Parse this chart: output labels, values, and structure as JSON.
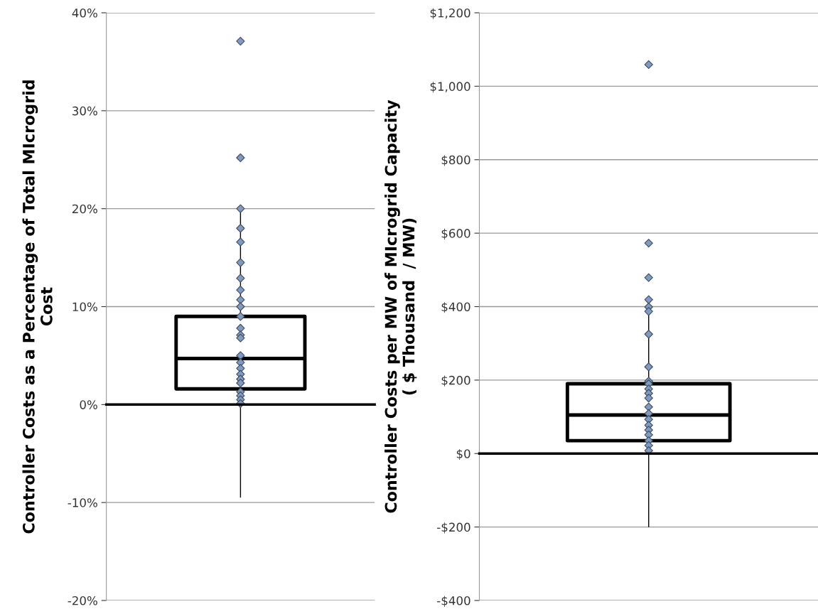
{
  "chart_data": [
    {
      "type": "box",
      "ylabel": "Controller Costs as a Percentage of Total MIcrogrid\nCost",
      "categories": [
        null
      ],
      "boxes": [
        {
          "low": -9.5,
          "q1": 1.6,
          "median": 4.7,
          "q3": 9.0,
          "high": 20.0
        }
      ],
      "series": [
        {
          "type": "scatter",
          "color": "#7f9bc2",
          "x": [
            null,
            null,
            null,
            null,
            null,
            null,
            null,
            null,
            null,
            null,
            null,
            null,
            null,
            null,
            null,
            null,
            null,
            null,
            null,
            null,
            null,
            null,
            null,
            null
          ],
          "values": [
            37.1,
            25.2,
            20.0,
            18.0,
            16.6,
            14.5,
            12.9,
            11.7,
            10.7,
            10.0,
            9.0,
            7.8,
            7.1,
            6.8,
            5.0,
            4.3,
            3.7,
            3.1,
            2.6,
            2.2,
            1.3,
            0.9,
            0.5,
            0.1
          ]
        }
      ],
      "marker": "diamond",
      "ylim": [
        -20,
        40
      ],
      "yticks": [
        {
          "value": -20,
          "label": "-20%"
        },
        {
          "value": -10,
          "label": "-10%"
        },
        {
          "value": 0,
          "label": "0%"
        },
        {
          "value": 10,
          "label": "10%"
        },
        {
          "value": 20,
          "label": "20%"
        },
        {
          "value": 30,
          "label": "30%"
        },
        {
          "value": 40,
          "label": "40%"
        }
      ],
      "grid": "y"
    },
    {
      "type": "box",
      "ylabel": "Controller Costs per MW of MIcrogrid Capacity\n( $ Thousand  / MW)",
      "categories": [
        null
      ],
      "boxes": [
        {
          "low": -200,
          "q1": 35,
          "median": 105,
          "q3": 190,
          "high": 427
        }
      ],
      "series": [
        {
          "type": "scatter",
          "color": "#7f9bc2",
          "x": [
            null,
            null,
            null,
            null,
            null,
            null,
            null,
            null,
            null,
            null,
            null,
            null,
            null,
            null,
            null,
            null,
            null,
            null,
            null,
            null,
            null,
            null
          ],
          "values": [
            1059,
            573,
            479,
            419,
            399,
            387,
            325,
            236,
            197,
            190,
            176,
            164,
            151,
            127,
            109,
            93,
            77,
            64,
            51,
            35,
            22,
            8
          ]
        }
      ],
      "marker": "diamond",
      "ylim": [
        -400,
        1200
      ],
      "yticks": [
        {
          "value": -400,
          "label": "-$400"
        },
        {
          "value": -200,
          "label": "-$200"
        },
        {
          "value": 0,
          "label": "$0"
        },
        {
          "value": 200,
          "label": "$200"
        },
        {
          "value": 400,
          "label": "$400"
        },
        {
          "value": 600,
          "label": "$600"
        },
        {
          "value": 800,
          "label": "$800"
        },
        {
          "value": 1000,
          "label": "$1,000"
        },
        {
          "value": 1200,
          "label": "$1,200"
        }
      ],
      "grid": "y"
    }
  ]
}
